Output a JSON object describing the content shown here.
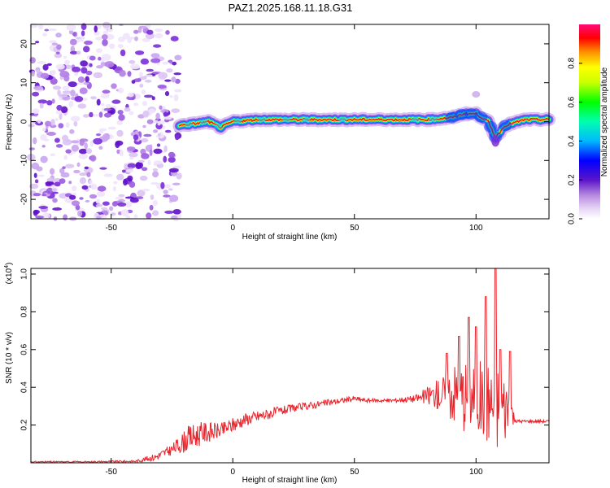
{
  "title": "PAZ1.2025.168.11.18.G31",
  "chart_data": [
    {
      "type": "heatmap",
      "xlabel": "Height of straight line (km)",
      "ylabel": "Frequency (Hz)",
      "xlim": [
        -83,
        130
      ],
      "ylim": [
        -25,
        25
      ],
      "xticks": [
        -50,
        0,
        50,
        100
      ],
      "yticks": [
        -20,
        -10,
        0,
        10,
        20
      ],
      "colorbar": {
        "label": "Normalized spectral amplitude",
        "range": [
          0,
          1
        ],
        "ticks": [
          "0.0",
          "0.2",
          "0.4",
          "0.6",
          "0.8"
        ],
        "colormap": "rainbow (white-purple-blue-cyan-green-yellow-red-magenta)"
      },
      "noise_region_x": [
        -83,
        -22
      ],
      "signal_ridge": {
        "x": [
          -22,
          -15,
          -10,
          -5,
          0,
          10,
          20,
          40,
          60,
          80,
          90,
          95,
          100,
          105,
          108,
          112,
          120,
          130
        ],
        "freq": [
          -1,
          -0.5,
          0,
          -1.5,
          0,
          0.5,
          0.5,
          0.5,
          0.5,
          0.5,
          1,
          2,
          2,
          0,
          -4,
          -1,
          0.5,
          0.5
        ]
      },
      "grid": false
    },
    {
      "type": "line",
      "xlabel": "Height of straight line (km)",
      "ylabel": "SNR (10 * v/v)",
      "y_multiplier": "(x10",
      "y_multiplier_exp": "4",
      "y_multiplier_close": ")",
      "xlim": [
        -83,
        130
      ],
      "ylim": [
        0,
        1.03
      ],
      "xticks": [
        -50,
        0,
        50,
        100
      ],
      "yticks": [
        "0.2",
        "0.4",
        "0.6",
        "0.8",
        "1.0"
      ],
      "color": "#e8232b",
      "envelope": {
        "x": [
          -83,
          -60,
          -40,
          -32,
          -25,
          -18,
          -12,
          -5,
          0,
          5,
          15,
          25,
          35,
          45,
          50,
          55,
          65,
          75,
          82,
          88,
          92,
          96,
          100,
          104,
          108,
          111,
          114,
          116,
          120,
          130
        ],
        "y": [
          0.005,
          0.005,
          0.008,
          0.03,
          0.07,
          0.13,
          0.16,
          0.17,
          0.2,
          0.23,
          0.26,
          0.29,
          0.31,
          0.33,
          0.34,
          0.33,
          0.33,
          0.34,
          0.36,
          0.37,
          0.37,
          0.36,
          0.35,
          0.33,
          0.3,
          0.3,
          0.3,
          0.22,
          0.22,
          0.22
        ],
        "noise": [
          0.004,
          0.004,
          0.006,
          0.02,
          0.03,
          0.07,
          0.06,
          0.04,
          0.04,
          0.035,
          0.03,
          0.02,
          0.02,
          0.015,
          0.015,
          0.01,
          0.01,
          0.02,
          0.06,
          0.12,
          0.18,
          0.2,
          0.2,
          0.22,
          0.26,
          0.2,
          0.14,
          0.01,
          0.008,
          0.008
        ]
      },
      "peaks": [
        [
          88,
          0.58
        ],
        [
          93,
          0.67
        ],
        [
          97,
          0.77
        ],
        [
          100,
          0.72
        ],
        [
          104,
          0.88
        ],
        [
          108,
          1.03
        ],
        [
          110,
          0.6
        ],
        [
          114,
          0.59
        ]
      ],
      "grid": false
    }
  ]
}
